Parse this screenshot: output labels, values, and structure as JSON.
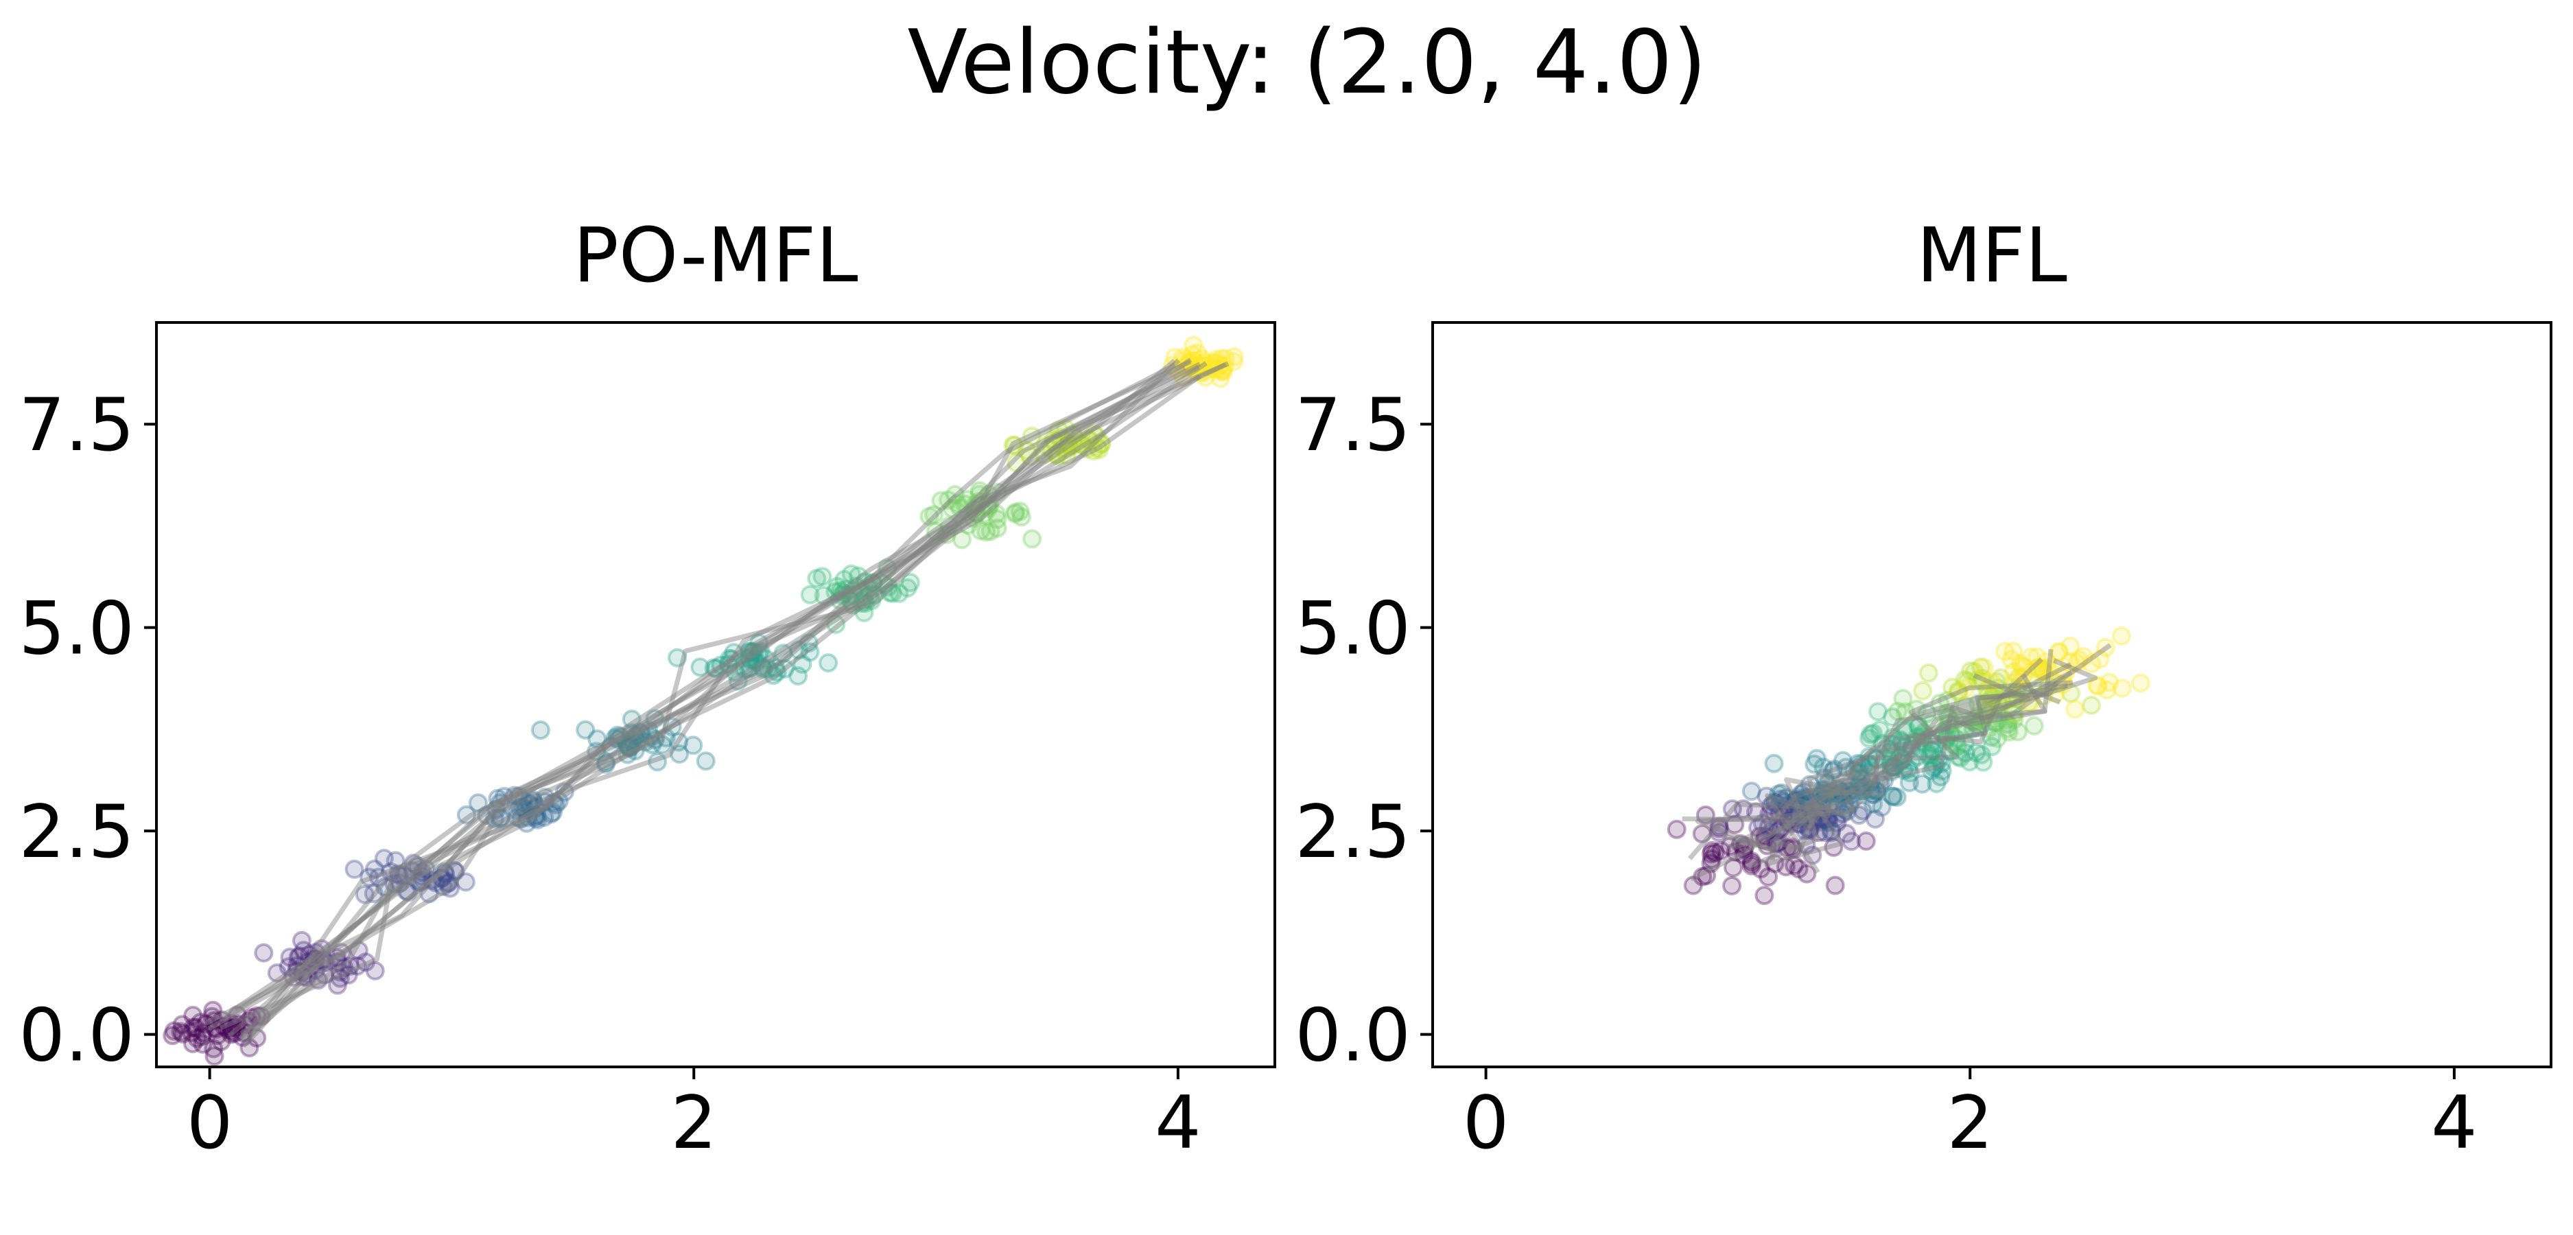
{
  "suptitle": "Velocity: (2.0, 4.0)",
  "chart_data": [
    {
      "type": "scatter",
      "title": "PO-MFL",
      "xlabel": "",
      "ylabel": "",
      "xlim": [
        -0.22,
        4.4
      ],
      "ylim": [
        -0.4,
        8.75
      ],
      "xticks": [
        0,
        2,
        4
      ],
      "xtick_labels": [
        "0",
        "2",
        "4"
      ],
      "yticks": [
        0.0,
        2.5,
        5.0,
        7.5
      ],
      "ytick_labels": [
        "0.0",
        "2.5",
        "5.0",
        "7.5"
      ],
      "colormap": "viridis",
      "point_color_meaning": "time step (purple = early, yellow = late)",
      "trajectory_color": "#808080",
      "point_clusters": [
        {
          "step": 0,
          "center": [
            0.05,
            0.05
          ],
          "spread": [
            0.18,
            0.22
          ],
          "count": 45
        },
        {
          "step": 1,
          "center": [
            0.45,
            0.85
          ],
          "spread": [
            0.2,
            0.22
          ],
          "count": 40
        },
        {
          "step": 2,
          "center": [
            0.85,
            1.9
          ],
          "spread": [
            0.2,
            0.22
          ],
          "count": 40
        },
        {
          "step": 3,
          "center": [
            1.3,
            2.8
          ],
          "spread": [
            0.2,
            0.22
          ],
          "count": 40
        },
        {
          "step": 4,
          "center": [
            1.75,
            3.6
          ],
          "spread": [
            0.2,
            0.22
          ],
          "count": 40
        },
        {
          "step": 5,
          "center": [
            2.25,
            4.6
          ],
          "spread": [
            0.2,
            0.22
          ],
          "count": 40
        },
        {
          "step": 6,
          "center": [
            2.7,
            5.45
          ],
          "spread": [
            0.2,
            0.22
          ],
          "count": 40
        },
        {
          "step": 7,
          "center": [
            3.15,
            6.4
          ],
          "spread": [
            0.2,
            0.22
          ],
          "count": 40
        },
        {
          "step": 8,
          "center": [
            3.55,
            7.25
          ],
          "spread": [
            0.2,
            0.22
          ],
          "count": 40
        },
        {
          "step": 9,
          "center": [
            4.1,
            8.2
          ],
          "spread": [
            0.15,
            0.15
          ],
          "count": 45
        }
      ],
      "trajectory_count": 12
    },
    {
      "type": "scatter",
      "title": "MFL",
      "xlabel": "",
      "ylabel": "",
      "xlim": [
        -0.22,
        4.4
      ],
      "ylim": [
        -0.4,
        8.75
      ],
      "xticks": [
        0,
        2,
        4
      ],
      "xtick_labels": [
        "0",
        "2",
        "4"
      ],
      "yticks": [
        0.0,
        2.5,
        5.0,
        7.5
      ],
      "ytick_labels": [
        "0.0",
        "2.5",
        "5.0",
        "7.5"
      ],
      "colormap": "viridis",
      "point_color_meaning": "time step (purple = early, yellow = late)",
      "trajectory_color": "#808080",
      "point_clusters": [
        {
          "step": 0,
          "center": [
            1.05,
            2.2
          ],
          "spread": [
            0.3,
            0.4
          ],
          "count": 45
        },
        {
          "step": 1,
          "center": [
            1.25,
            2.55
          ],
          "spread": [
            0.25,
            0.35
          ],
          "count": 40
        },
        {
          "step": 2,
          "center": [
            1.35,
            2.75
          ],
          "spread": [
            0.22,
            0.3
          ],
          "count": 40
        },
        {
          "step": 3,
          "center": [
            1.45,
            2.95
          ],
          "spread": [
            0.22,
            0.3
          ],
          "count": 40
        },
        {
          "step": 4,
          "center": [
            1.55,
            3.15
          ],
          "spread": [
            0.25,
            0.3
          ],
          "count": 40
        },
        {
          "step": 5,
          "center": [
            1.7,
            3.4
          ],
          "spread": [
            0.25,
            0.3
          ],
          "count": 40
        },
        {
          "step": 6,
          "center": [
            1.85,
            3.65
          ],
          "spread": [
            0.25,
            0.3
          ],
          "count": 40
        },
        {
          "step": 7,
          "center": [
            2.0,
            3.9
          ],
          "spread": [
            0.25,
            0.3
          ],
          "count": 40
        },
        {
          "step": 8,
          "center": [
            2.15,
            4.2
          ],
          "spread": [
            0.28,
            0.3
          ],
          "count": 40
        },
        {
          "step": 9,
          "center": [
            2.35,
            4.5
          ],
          "spread": [
            0.3,
            0.35
          ],
          "count": 45
        }
      ],
      "trajectory_count": 12
    }
  ]
}
